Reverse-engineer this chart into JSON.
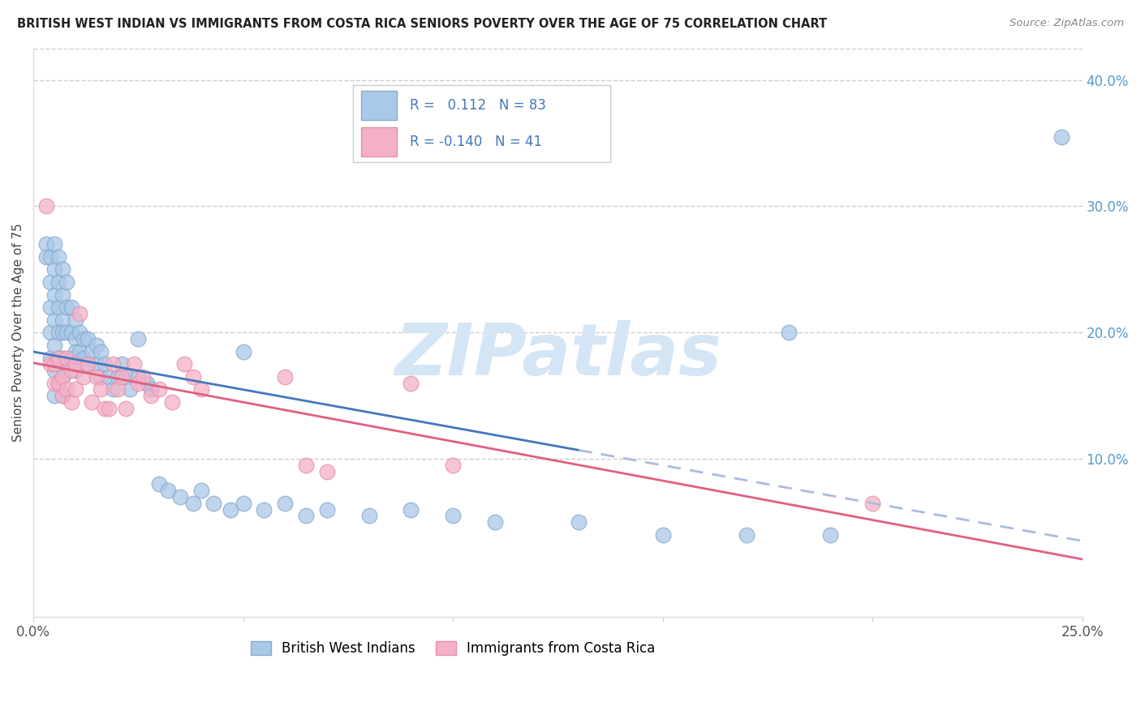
{
  "title": "BRITISH WEST INDIAN VS IMMIGRANTS FROM COSTA RICA SENIORS POVERTY OVER THE AGE OF 75 CORRELATION CHART",
  "source": "Source: ZipAtlas.com",
  "ylabel": "Seniors Poverty Over the Age of 75",
  "right_ytick_vals": [
    0.1,
    0.2,
    0.3,
    0.4
  ],
  "right_ytick_labels": [
    "10.0%",
    "20.0%",
    "30.0%",
    "40.0%"
  ],
  "xlim": [
    0.0,
    0.25
  ],
  "ylim": [
    -0.025,
    0.425
  ],
  "blue_color": "#aac8e8",
  "pink_color": "#f4b0c8",
  "blue_edge_color": "#88aacc",
  "pink_edge_color": "#e890a8",
  "blue_line_color": "#4477bb",
  "pink_line_color": "#e06080",
  "dashed_color": "#aabbdd",
  "watermark": "ZIPatlas",
  "watermark_color": "#d4e5f5",
  "blue_x": [
    0.003,
    0.003,
    0.004,
    0.004,
    0.004,
    0.004,
    0.004,
    0.005,
    0.005,
    0.005,
    0.005,
    0.005,
    0.005,
    0.005,
    0.006,
    0.006,
    0.006,
    0.006,
    0.006,
    0.006,
    0.007,
    0.007,
    0.007,
    0.007,
    0.007,
    0.007,
    0.007,
    0.008,
    0.008,
    0.008,
    0.008,
    0.009,
    0.009,
    0.009,
    0.01,
    0.01,
    0.01,
    0.01,
    0.011,
    0.011,
    0.012,
    0.012,
    0.013,
    0.013,
    0.014,
    0.015,
    0.015,
    0.016,
    0.016,
    0.017,
    0.018,
    0.019,
    0.02,
    0.021,
    0.022,
    0.023,
    0.025,
    0.027,
    0.028,
    0.03,
    0.032,
    0.035,
    0.038,
    0.04,
    0.043,
    0.047,
    0.05,
    0.055,
    0.06,
    0.065,
    0.07,
    0.08,
    0.09,
    0.1,
    0.11,
    0.13,
    0.15,
    0.17,
    0.19,
    0.025,
    0.05,
    0.18,
    0.245
  ],
  "blue_y": [
    0.27,
    0.26,
    0.26,
    0.24,
    0.22,
    0.2,
    0.18,
    0.27,
    0.25,
    0.23,
    0.21,
    0.19,
    0.17,
    0.15,
    0.26,
    0.24,
    0.22,
    0.2,
    0.18,
    0.16,
    0.25,
    0.23,
    0.21,
    0.2,
    0.18,
    0.165,
    0.15,
    0.24,
    0.22,
    0.2,
    0.175,
    0.22,
    0.2,
    0.18,
    0.21,
    0.195,
    0.185,
    0.17,
    0.2,
    0.185,
    0.195,
    0.18,
    0.195,
    0.175,
    0.185,
    0.19,
    0.175,
    0.185,
    0.165,
    0.175,
    0.165,
    0.155,
    0.165,
    0.175,
    0.165,
    0.155,
    0.165,
    0.16,
    0.155,
    0.08,
    0.075,
    0.07,
    0.065,
    0.075,
    0.065,
    0.06,
    0.065,
    0.06,
    0.065,
    0.055,
    0.06,
    0.055,
    0.06,
    0.055,
    0.05,
    0.05,
    0.04,
    0.04,
    0.04,
    0.195,
    0.185,
    0.2,
    0.355
  ],
  "pink_x": [
    0.003,
    0.004,
    0.005,
    0.005,
    0.006,
    0.006,
    0.007,
    0.007,
    0.008,
    0.008,
    0.009,
    0.009,
    0.01,
    0.01,
    0.011,
    0.012,
    0.013,
    0.014,
    0.015,
    0.016,
    0.017,
    0.018,
    0.019,
    0.02,
    0.021,
    0.022,
    0.024,
    0.025,
    0.026,
    0.028,
    0.03,
    0.033,
    0.036,
    0.038,
    0.04,
    0.06,
    0.065,
    0.07,
    0.09,
    0.1,
    0.2
  ],
  "pink_y": [
    0.3,
    0.175,
    0.175,
    0.16,
    0.18,
    0.16,
    0.165,
    0.15,
    0.18,
    0.155,
    0.17,
    0.145,
    0.175,
    0.155,
    0.215,
    0.165,
    0.175,
    0.145,
    0.165,
    0.155,
    0.14,
    0.14,
    0.175,
    0.155,
    0.165,
    0.14,
    0.175,
    0.16,
    0.165,
    0.15,
    0.155,
    0.145,
    0.175,
    0.165,
    0.155,
    0.165,
    0.095,
    0.09,
    0.16,
    0.095,
    0.065
  ]
}
